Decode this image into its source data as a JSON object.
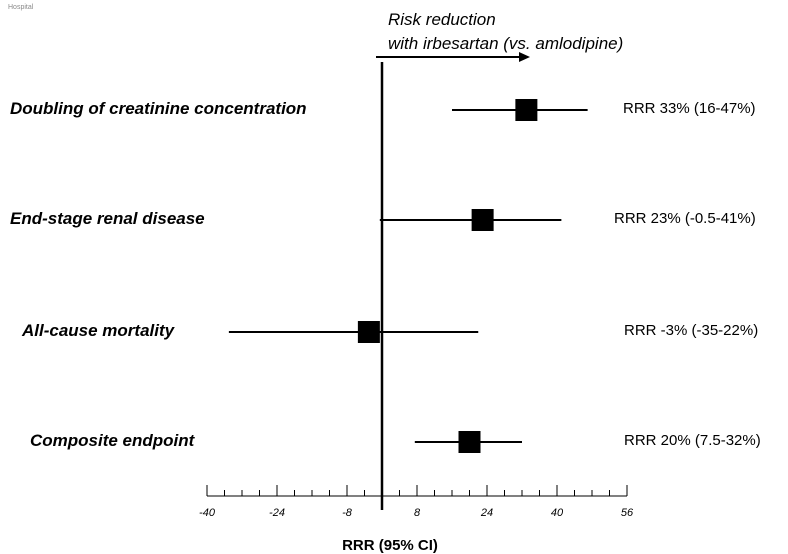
{
  "corner_text": "Hospital",
  "chart_data": {
    "type": "forest",
    "annotation_line1": "Risk reduction",
    "annotation_line2": "with irbesartan (vs. amlodipine)",
    "xlabel": "RRR (95% CI)",
    "xlim": [
      -40,
      56
    ],
    "xticks": [
      -40,
      -24,
      -8,
      8,
      24,
      40,
      56
    ],
    "reference_line": 0,
    "rows": [
      {
        "label": "Doubling of creatinine concentration",
        "rrr": 33,
        "ci": [
          16,
          47
        ],
        "text": "RRR 33% (16-47%)"
      },
      {
        "label": "End-stage renal disease",
        "rrr": 23,
        "ci": [
          -0.5,
          41
        ],
        "text": "RRR 23% (-0.5-41%)"
      },
      {
        "label": "All-cause mortality",
        "rrr": -3,
        "ci": [
          -35,
          22
        ],
        "text": "RRR -3% (-35-22%)"
      },
      {
        "label": "Composite endpoint",
        "rrr": 20,
        "ci": [
          7.5,
          32
        ],
        "text": "RRR 20% (7.5-32%)"
      }
    ]
  }
}
